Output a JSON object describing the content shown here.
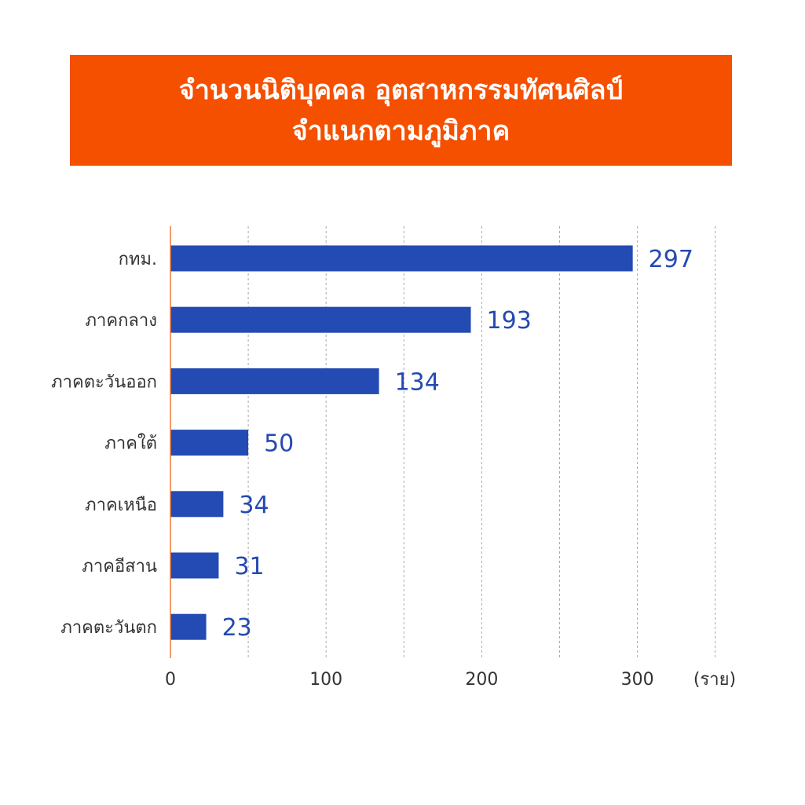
{
  "header": {
    "title_line1": "จำนวนนิติบุคคล อุตสาหกรรมทัศนศิลป์",
    "title_line2": "จำแนกตามภูมิภาค"
  },
  "colors": {
    "header_bg": "#f55000",
    "bar": "#244bb3",
    "value_text": "#2449b2",
    "axis_line": "#f07a3a",
    "grid": "#aaaaaa"
  },
  "chart_data": {
    "type": "bar",
    "orientation": "horizontal",
    "categories": [
      "กทม.",
      "ภาคกลาง",
      "ภาคตะวันออก",
      "ภาคใต้",
      "ภาคเหนือ",
      "ภาคอีสาน",
      "ภาคตะวันตก"
    ],
    "values": [
      297,
      193,
      134,
      50,
      34,
      31,
      23
    ],
    "xlim": [
      0,
      350
    ],
    "xticks": [
      0,
      100,
      200,
      300
    ],
    "grid_step": 50,
    "grid": true,
    "xunit": "(ราย)"
  }
}
